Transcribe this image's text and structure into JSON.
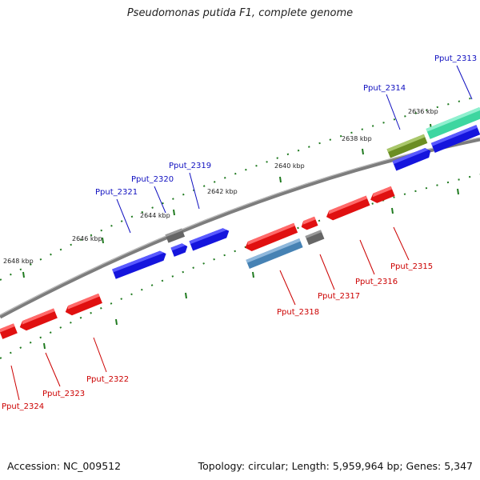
{
  "title": "Pseudomonas putida F1, complete genome",
  "footer": {
    "accession": "Accession: NC_009512",
    "summary": "Topology: circular; Length: 5,959,964 bp; Genes: 5,347"
  },
  "colors": {
    "background": "#ffffff",
    "backbone": "#8a8a8a",
    "tick": "#1f7a1f",
    "forward_label": "#1010c0",
    "reverse_label": "#cc0000",
    "red_gene": "#e01010",
    "blue_gene": "#1515dd",
    "gray_gene": "#666666",
    "olive_gene": "#6b8e23",
    "teal_gene": "#3dd6a0",
    "steel_gene": "#4682b4"
  },
  "scale_labels": [
    {
      "name": "scale-2636",
      "text": "2636 kbp"
    },
    {
      "name": "scale-2638",
      "text": "2638 kbp"
    },
    {
      "name": "scale-2640",
      "text": "2640 kbp"
    },
    {
      "name": "scale-2642",
      "text": "2642 kbp"
    },
    {
      "name": "scale-2644",
      "text": "2644 kbp"
    },
    {
      "name": "scale-2646",
      "text": "2646 kbp"
    },
    {
      "name": "scale-2648",
      "text": "2648 kbp"
    }
  ],
  "gene_labels": [
    {
      "name": "Pput_2313",
      "text": "Pput_2313",
      "strand": "forward"
    },
    {
      "name": "Pput_2314",
      "text": "Pput_2314",
      "strand": "forward"
    },
    {
      "name": "Pput_2319",
      "text": "Pput_2319",
      "strand": "forward"
    },
    {
      "name": "Pput_2320",
      "text": "Pput_2320",
      "strand": "forward"
    },
    {
      "name": "Pput_2321",
      "text": "Pput_2321",
      "strand": "forward"
    },
    {
      "name": "Pput_2315",
      "text": "Pput_2315",
      "strand": "reverse"
    },
    {
      "name": "Pput_2316",
      "text": "Pput_2316",
      "strand": "reverse"
    },
    {
      "name": "Pput_2317",
      "text": "Pput_2317",
      "strand": "reverse"
    },
    {
      "name": "Pput_2318",
      "text": "Pput_2318",
      "strand": "reverse"
    },
    {
      "name": "Pput_2322",
      "text": "Pput_2322",
      "strand": "reverse"
    },
    {
      "name": "Pput_2323",
      "text": "Pput_2323",
      "strand": "reverse"
    },
    {
      "name": "Pput_2324",
      "text": "Pput_2324",
      "strand": "reverse"
    }
  ]
}
